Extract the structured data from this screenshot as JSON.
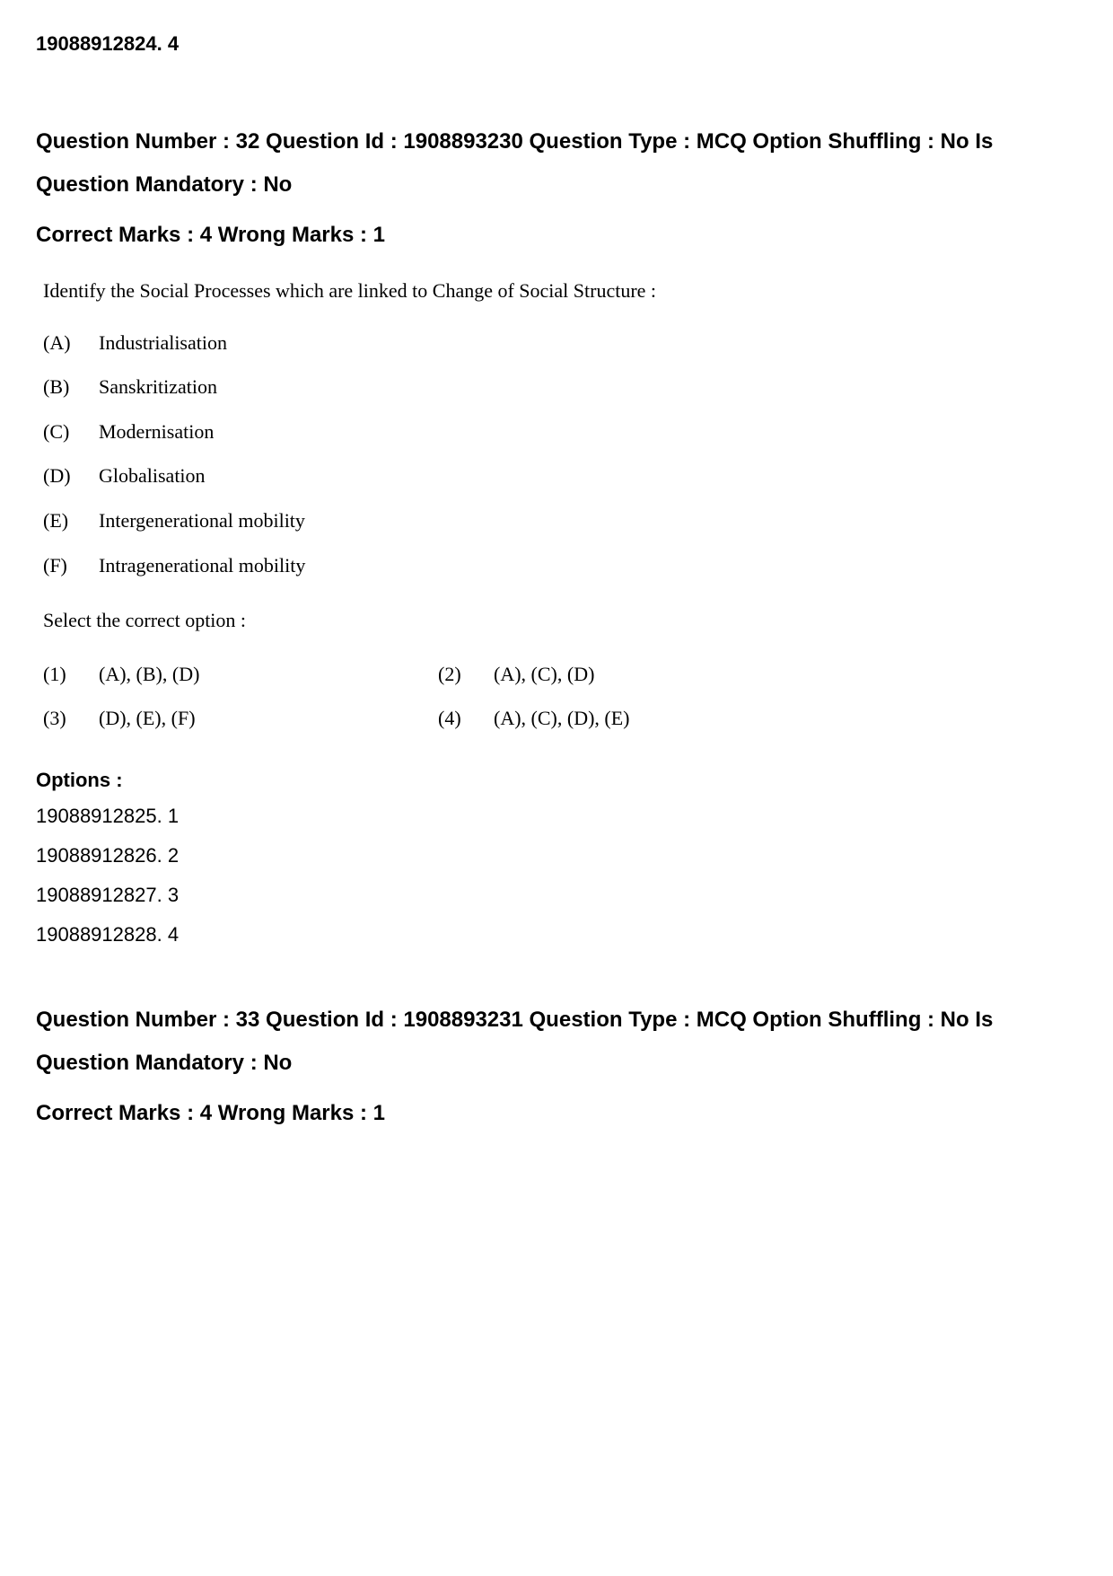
{
  "top_option": "19088912824. 4",
  "q32": {
    "header": "Question Number : 32 Question Id : 1908893230 Question Type : MCQ Option Shuffling : No Is Question Mandatory : No",
    "marks": "Correct Marks : 4 Wrong Marks : 1",
    "question_text": "Identify the Social Processes which are linked to Change of Social Structure :",
    "items": [
      {
        "letter": "(A)",
        "text": "Industrialisation"
      },
      {
        "letter": "(B)",
        "text": "Sanskritization"
      },
      {
        "letter": "(C)",
        "text": "Modernisation"
      },
      {
        "letter": "(D)",
        "text": "Globalisation"
      },
      {
        "letter": "(E)",
        "text": "Intergenerational mobility"
      },
      {
        "letter": "(F)",
        "text": "Intragenerational mobility"
      }
    ],
    "select_text": "Select the correct option :",
    "choices": [
      {
        "num": "(1)",
        "text": "(A), (B), (D)"
      },
      {
        "num": "(2)",
        "text": "(A), (C), (D)"
      },
      {
        "num": "(3)",
        "text": "(D), (E), (F)"
      },
      {
        "num": "(4)",
        "text": "(A), (C), (D), (E)"
      }
    ],
    "options_label": "Options :",
    "options": [
      "19088912825. 1",
      "19088912826. 2",
      "19088912827. 3",
      "19088912828. 4"
    ]
  },
  "q33": {
    "header": "Question Number : 33 Question Id : 1908893231 Question Type : MCQ Option Shuffling : No Is Question Mandatory : No",
    "marks": "Correct Marks : 4 Wrong Marks : 1"
  }
}
